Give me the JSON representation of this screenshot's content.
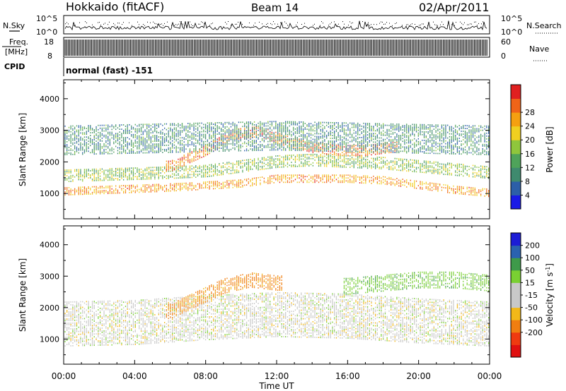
{
  "header": {
    "title": "Hokkaido (fitACF)",
    "beam": "Beam 14",
    "date": "02/Apr/2011"
  },
  "aux_panels": {
    "nsky_label": "N.Sky",
    "nsky_ticks": [
      "10^5",
      "10^0"
    ],
    "nsearch_label": "N.Search",
    "nsearch_ticks": [
      "10^5",
      "10^0"
    ],
    "freq_label_line1": "Freq.",
    "freq_label_line2": "[MHz]",
    "freq_ticks": [
      "18",
      "8"
    ],
    "nave_label": "Nave",
    "nave_ticks": [
      "60",
      "0"
    ],
    "cpid_label": "CPID",
    "cpid_text": "normal (fast) -151"
  },
  "x_axis": {
    "title": "Time UT",
    "ticks": [
      "00:00",
      "04:00",
      "08:00",
      "12:00",
      "16:00",
      "20:00",
      "00:00"
    ]
  },
  "power_panel": {
    "ylabel": "Slant Range [km]",
    "yticks": [
      "1000",
      "2000",
      "3000",
      "4000"
    ],
    "colorbar_label": "Power [dB]",
    "colorbar_ticks": [
      "4",
      "8",
      "12",
      "16",
      "20",
      "24",
      "28"
    ]
  },
  "velocity_panel": {
    "ylabel": "Slant Range [km]",
    "yticks": [
      "1000",
      "2000",
      "3000",
      "4000"
    ],
    "colorbar_label": "Velocity [m s",
    "colorbar_label_sup": "-1",
    "colorbar_label_end": "]",
    "colorbar_ticks": [
      "200",
      "100",
      "50",
      "15",
      "-15",
      "-50",
      "-100",
      "-200"
    ]
  },
  "colors": {
    "power_scale": [
      "#1a1ae6",
      "#2c5fa8",
      "#3f8a6e",
      "#4fa35a",
      "#8fc63c",
      "#f0d020",
      "#f5a010",
      "#f06418",
      "#e02020"
    ],
    "velocity_scale": [
      "#1c1cd6",
      "#2a62b0",
      "#3e9a4a",
      "#7ad032",
      "#c8c8c8",
      "#c8c8c8",
      "#f2b818",
      "#f07e10",
      "#ef3a10",
      "#e01010"
    ]
  },
  "chart_data": [
    {
      "type": "heatmap",
      "panel": "power",
      "x_units": "hours UT",
      "xlim": [
        0,
        24
      ],
      "ylim": [
        200,
        4600
      ],
      "colorbar_range_db": [
        0,
        30
      ],
      "bands": [
        {
          "x": [
            0,
            2.5,
            5,
            7,
            8.5,
            10,
            12,
            14,
            16,
            18,
            20,
            22,
            24
          ],
          "range_km": [
            1100,
            1150,
            1200,
            1250,
            1300,
            1350,
            1500,
            1500,
            1500,
            1450,
            1300,
            1150,
            1050
          ],
          "width_km": 250,
          "power_db": 22
        },
        {
          "x": [
            0,
            3,
            6,
            8,
            10,
            12,
            14,
            16,
            18,
            20,
            22,
            24
          ],
          "range_km": [
            1600,
            1650,
            1700,
            1750,
            1900,
            2050,
            2100,
            2050,
            2000,
            1900,
            1800,
            1700
          ],
          "width_km": 400,
          "power_db": 14
        },
        {
          "x": [
            6,
            8,
            9.5,
            11,
            12.5,
            14,
            15.5,
            17,
            18.5
          ],
          "range_km": [
            1900,
            2400,
            2900,
            3000,
            2700,
            2500,
            2400,
            2400,
            2500
          ],
          "width_km": 350,
          "power_db": 24
        },
        {
          "x": [
            0,
            4,
            8,
            12,
            16,
            20,
            24
          ],
          "range_km": [
            2700,
            2750,
            2800,
            2850,
            2800,
            2750,
            2700
          ],
          "width_km": 900,
          "power_db": 9
        }
      ]
    },
    {
      "type": "heatmap",
      "panel": "velocity",
      "x_units": "hours UT",
      "xlim": [
        0,
        24
      ],
      "ylim": [
        200,
        4600
      ],
      "colorbar_range_m_s": [
        -250,
        250
      ],
      "bands": [
        {
          "x": [
            0,
            4,
            8,
            12,
            16,
            20,
            24
          ],
          "range_km": [
            1500,
            1550,
            1700,
            1800,
            1750,
            1600,
            1500
          ],
          "width_km": 1400,
          "velocity": 0
        },
        {
          "x": [
            6,
            7.5,
            9,
            10.5,
            12
          ],
          "range_km": [
            1900,
            2300,
            2700,
            2900,
            2800
          ],
          "width_km": 450,
          "velocity": -60
        },
        {
          "x": [
            16,
            18,
            20,
            22,
            24
          ],
          "range_km": [
            2700,
            2800,
            2900,
            2900,
            2800
          ],
          "width_km": 500,
          "velocity": 40
        }
      ]
    }
  ]
}
